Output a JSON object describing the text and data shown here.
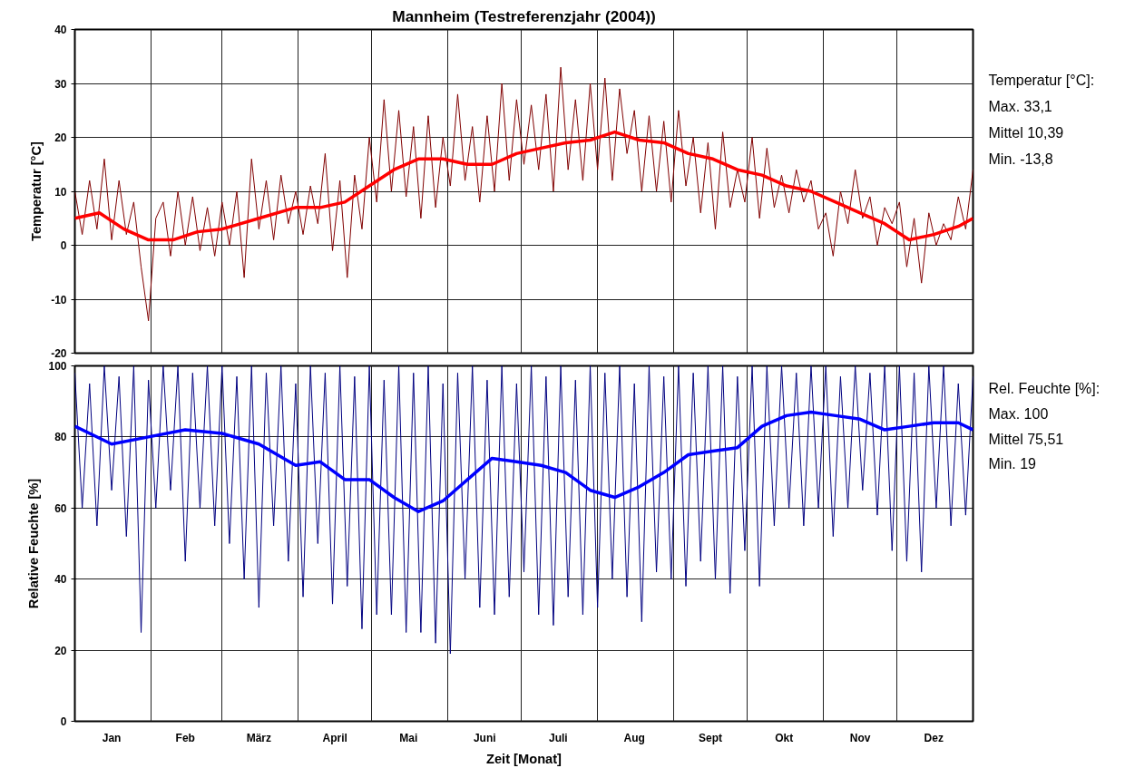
{
  "chart_data": [
    {
      "type": "line",
      "title": "Mannheim (Testreferenzjahr (2004))",
      "ylabel": "Temperatur [°C]",
      "xlim": [
        "2004-01-01",
        "2005-01-01"
      ],
      "ylim": [
        -20,
        40
      ],
      "yticks": [
        -20,
        -10,
        0,
        10,
        20,
        30,
        40
      ],
      "xticks": [
        {
          "value": "2004-01-01",
          "label": null
        },
        {
          "value": "2004-02-01",
          "label": null
        },
        {
          "value": "2004-03-01",
          "label": null
        },
        {
          "value": "2004-04-01",
          "label": null
        },
        {
          "value": "2004-05-01",
          "label": null
        },
        {
          "value": "2004-06-01",
          "label": null
        },
        {
          "value": "2004-07-01",
          "label": null
        },
        {
          "value": "2004-08-01",
          "label": null
        },
        {
          "value": "2004-09-01",
          "label": null
        },
        {
          "value": "2004-10-01",
          "label": null
        },
        {
          "value": "2004-11-01",
          "label": null
        },
        {
          "value": "2004-12-01",
          "label": null
        },
        {
          "value": "2005-01-01",
          "label": null
        }
      ],
      "tick_labels": "y",
      "grid": true,
      "annotations": [
        "Temperatur [°C]:",
        "Max.   33,1",
        "Mittel 10,39",
        "Min.   -13,8"
      ],
      "series": [
        {
          "color": "#800000",
          "x": [
            "2004-01-01",
            "2004-01-04",
            "2004-01-07",
            "2004-01-10",
            "2004-01-13",
            "2004-01-16",
            "2004-01-19",
            "2004-01-22",
            "2004-01-25",
            "2004-01-28",
            "2004-01-31",
            "2004-02-03",
            "2004-02-06",
            "2004-02-09",
            "2004-02-12",
            "2004-02-15",
            "2004-02-18",
            "2004-02-21",
            "2004-02-24",
            "2004-02-27",
            "2004-03-01",
            "2004-03-04",
            "2004-03-07",
            "2004-03-10",
            "2004-03-13",
            "2004-03-16",
            "2004-03-19",
            "2004-03-22",
            "2004-03-25",
            "2004-03-28",
            "2004-03-31",
            "2004-04-03",
            "2004-04-06",
            "2004-04-09",
            "2004-04-12",
            "2004-04-15",
            "2004-04-18",
            "2004-04-21",
            "2004-04-24",
            "2004-04-27",
            "2004-04-30",
            "2004-05-03",
            "2004-05-06",
            "2004-05-09",
            "2004-05-12",
            "2004-05-15",
            "2004-05-18",
            "2004-05-21",
            "2004-05-24",
            "2004-05-27",
            "2004-05-30",
            "2004-06-02",
            "2004-06-05",
            "2004-06-08",
            "2004-06-11",
            "2004-06-14",
            "2004-06-17",
            "2004-06-20",
            "2004-06-23",
            "2004-06-26",
            "2004-06-29",
            "2004-07-02",
            "2004-07-05",
            "2004-07-08",
            "2004-07-11",
            "2004-07-14",
            "2004-07-17",
            "2004-07-20",
            "2004-07-23",
            "2004-07-26",
            "2004-07-29",
            "2004-08-01",
            "2004-08-04",
            "2004-08-07",
            "2004-08-10",
            "2004-08-13",
            "2004-08-16",
            "2004-08-19",
            "2004-08-22",
            "2004-08-25",
            "2004-08-28",
            "2004-08-31",
            "2004-09-03",
            "2004-09-06",
            "2004-09-09",
            "2004-09-12",
            "2004-09-15",
            "2004-09-18",
            "2004-09-21",
            "2004-09-24",
            "2004-09-27",
            "2004-09-30",
            "2004-10-03",
            "2004-10-06",
            "2004-10-09",
            "2004-10-12",
            "2004-10-15",
            "2004-10-18",
            "2004-10-21",
            "2004-10-24",
            "2004-10-27",
            "2004-10-30",
            "2004-11-02",
            "2004-11-05",
            "2004-11-08",
            "2004-11-11",
            "2004-11-14",
            "2004-11-17",
            "2004-11-20",
            "2004-11-23",
            "2004-11-26",
            "2004-11-29",
            "2004-12-02",
            "2004-12-05",
            "2004-12-08",
            "2004-12-11",
            "2004-12-14",
            "2004-12-17",
            "2004-12-20",
            "2004-12-23",
            "2004-12-26",
            "2004-12-29",
            "2005-01-01"
          ],
          "values": [
            10,
            2,
            12,
            3,
            16,
            1,
            12,
            2,
            8,
            -4,
            -14,
            5,
            8,
            -2,
            10,
            0,
            9,
            -1,
            7,
            -2,
            8,
            0,
            10,
            -6,
            16,
            3,
            12,
            1,
            13,
            4,
            10,
            2,
            11,
            4,
            17,
            -1,
            12,
            -6,
            13,
            3,
            20,
            8,
            27,
            10,
            25,
            9,
            22,
            5,
            24,
            7,
            20,
            11,
            28,
            12,
            22,
            8,
            24,
            10,
            30,
            12,
            27,
            15,
            26,
            14,
            28,
            10,
            33,
            14,
            27,
            12,
            30,
            14,
            31,
            12,
            29,
            17,
            25,
            10,
            24,
            10,
            23,
            8,
            25,
            11,
            20,
            6,
            19,
            3,
            21,
            7,
            14,
            8,
            20,
            5,
            18,
            7,
            13,
            6,
            14,
            8,
            12,
            3,
            6,
            -2,
            10,
            4,
            14,
            5,
            9,
            0,
            7,
            4,
            8,
            -4,
            5,
            -7,
            6,
            0,
            4,
            1,
            9,
            3,
            14
          ]
        },
        {
          "color": "#ff0000",
          "x": [
            "2004-01-01",
            "2004-01-11",
            "2004-01-21",
            "2004-01-31",
            "2004-02-10",
            "2004-02-20",
            "2004-03-01",
            "2004-03-16",
            "2004-03-31",
            "2004-04-10",
            "2004-04-20",
            "2004-04-30",
            "2004-05-10",
            "2004-05-20",
            "2004-05-30",
            "2004-06-09",
            "2004-06-19",
            "2004-06-29",
            "2004-07-09",
            "2004-07-19",
            "2004-07-29",
            "2004-08-08",
            "2004-08-18",
            "2004-08-28",
            "2004-09-07",
            "2004-09-17",
            "2004-09-27",
            "2004-10-07",
            "2004-10-17",
            "2004-10-27",
            "2004-11-06",
            "2004-11-16",
            "2004-11-26",
            "2004-12-06",
            "2004-12-16",
            "2004-12-26",
            "2005-01-01"
          ],
          "values": [
            5,
            6,
            3,
            1,
            1,
            2.5,
            3,
            5,
            7,
            7,
            8,
            11,
            14,
            16,
            16,
            15,
            15,
            17,
            18,
            19,
            19.5,
            21,
            19.5,
            19,
            17,
            16,
            14,
            13,
            11,
            10,
            8,
            6,
            4,
            1,
            2,
            3.5,
            5
          ]
        }
      ]
    },
    {
      "type": "line",
      "ylabel": "Relative Feuchte [%]",
      "xlabel": "Zeit [Monat]",
      "xlim": [
        "2004-01-01",
        "2005-01-01"
      ],
      "ylim": [
        0,
        100
      ],
      "yticks": [
        0,
        20,
        40,
        60,
        80,
        100
      ],
      "xticks": [
        {
          "value": "2004-01-01",
          "label": null
        },
        {
          "value": "2004-01-16",
          "label": "Jan"
        },
        {
          "value": "2004-02-01",
          "label": null
        },
        {
          "value": "2004-02-15",
          "label": "Feb"
        },
        {
          "value": "2004-03-01",
          "label": null
        },
        {
          "value": "2004-03-16",
          "label": "März"
        },
        {
          "value": "2004-04-01",
          "label": null
        },
        {
          "value": "2004-04-16",
          "label": "April"
        },
        {
          "value": "2004-05-01",
          "label": null
        },
        {
          "value": "2004-05-16",
          "label": "Mai"
        },
        {
          "value": "2004-06-01",
          "label": null
        },
        {
          "value": "2004-06-16",
          "label": "Juni"
        },
        {
          "value": "2004-07-01",
          "label": null
        },
        {
          "value": "2004-07-16",
          "label": "Juli"
        },
        {
          "value": "2004-08-01",
          "label": null
        },
        {
          "value": "2004-08-16",
          "label": "Aug"
        },
        {
          "value": "2004-09-01",
          "label": null
        },
        {
          "value": "2004-09-16",
          "label": "Sept"
        },
        {
          "value": "2004-10-01",
          "label": null
        },
        {
          "value": "2004-10-16",
          "label": "Okt"
        },
        {
          "value": "2004-11-01",
          "label": null
        },
        {
          "value": "2004-11-16",
          "label": "Nov"
        },
        {
          "value": "2004-12-01",
          "label": null
        },
        {
          "value": "2004-12-16",
          "label": "Dez"
        },
        {
          "value": "2005-01-01",
          "label": null
        }
      ],
      "grid": true,
      "annotations": [
        "Rel. Feuchte [%]:",
        "Max.   100",
        "Mittel 75,51",
        "Min.   19"
      ],
      "series": [
        {
          "color": "#000080",
          "x": [
            "2004-01-01",
            "2004-01-04",
            "2004-01-07",
            "2004-01-10",
            "2004-01-13",
            "2004-01-16",
            "2004-01-19",
            "2004-01-22",
            "2004-01-25",
            "2004-01-28",
            "2004-01-31",
            "2004-02-03",
            "2004-02-06",
            "2004-02-09",
            "2004-02-12",
            "2004-02-15",
            "2004-02-18",
            "2004-02-21",
            "2004-02-24",
            "2004-02-27",
            "2004-03-01",
            "2004-03-04",
            "2004-03-07",
            "2004-03-10",
            "2004-03-13",
            "2004-03-16",
            "2004-03-19",
            "2004-03-22",
            "2004-03-25",
            "2004-03-28",
            "2004-03-31",
            "2004-04-03",
            "2004-04-06",
            "2004-04-09",
            "2004-04-12",
            "2004-04-15",
            "2004-04-18",
            "2004-04-21",
            "2004-04-24",
            "2004-04-27",
            "2004-04-30",
            "2004-05-03",
            "2004-05-06",
            "2004-05-09",
            "2004-05-12",
            "2004-05-15",
            "2004-05-18",
            "2004-05-21",
            "2004-05-24",
            "2004-05-27",
            "2004-05-30",
            "2004-06-02",
            "2004-06-05",
            "2004-06-08",
            "2004-06-11",
            "2004-06-14",
            "2004-06-17",
            "2004-06-20",
            "2004-06-23",
            "2004-06-26",
            "2004-06-29",
            "2004-07-02",
            "2004-07-05",
            "2004-07-08",
            "2004-07-11",
            "2004-07-14",
            "2004-07-17",
            "2004-07-20",
            "2004-07-23",
            "2004-07-26",
            "2004-07-29",
            "2004-08-01",
            "2004-08-04",
            "2004-08-07",
            "2004-08-10",
            "2004-08-13",
            "2004-08-16",
            "2004-08-19",
            "2004-08-22",
            "2004-08-25",
            "2004-08-28",
            "2004-08-31",
            "2004-09-03",
            "2004-09-06",
            "2004-09-09",
            "2004-09-12",
            "2004-09-15",
            "2004-09-18",
            "2004-09-21",
            "2004-09-24",
            "2004-09-27",
            "2004-09-30",
            "2004-10-03",
            "2004-10-06",
            "2004-10-09",
            "2004-10-12",
            "2004-10-15",
            "2004-10-18",
            "2004-10-21",
            "2004-10-24",
            "2004-10-27",
            "2004-10-30",
            "2004-11-02",
            "2004-11-05",
            "2004-11-08",
            "2004-11-11",
            "2004-11-14",
            "2004-11-17",
            "2004-11-20",
            "2004-11-23",
            "2004-11-26",
            "2004-11-29",
            "2004-12-02",
            "2004-12-05",
            "2004-12-08",
            "2004-12-11",
            "2004-12-14",
            "2004-12-17",
            "2004-12-20",
            "2004-12-23",
            "2004-12-26",
            "2004-12-29",
            "2005-01-01"
          ],
          "values": [
            98,
            60,
            95,
            55,
            100,
            65,
            97,
            52,
            100,
            25,
            96,
            60,
            100,
            65,
            100,
            45,
            98,
            60,
            100,
            55,
            100,
            50,
            97,
            40,
            100,
            32,
            98,
            55,
            100,
            45,
            95,
            35,
            100,
            50,
            98,
            33,
            100,
            38,
            97,
            26,
            100,
            30,
            96,
            30,
            100,
            25,
            98,
            25,
            100,
            22,
            95,
            19,
            98,
            40,
            100,
            32,
            96,
            30,
            100,
            35,
            95,
            42,
            100,
            30,
            97,
            27,
            100,
            35,
            96,
            30,
            100,
            32,
            98,
            40,
            100,
            35,
            95,
            28,
            100,
            42,
            97,
            40,
            100,
            38,
            98,
            45,
            100,
            40,
            100,
            36,
            97,
            48,
            100,
            38,
            100,
            55,
            100,
            60,
            98,
            55,
            100,
            60,
            100,
            52,
            97,
            60,
            100,
            65,
            98,
            58,
            100,
            48,
            100,
            45,
            98,
            42,
            100,
            60,
            100,
            55,
            95,
            58,
            97
          ]
        },
        {
          "color": "#0000ff",
          "x": [
            "2004-01-01",
            "2004-01-16",
            "2004-01-31",
            "2004-02-15",
            "2004-03-01",
            "2004-03-16",
            "2004-03-31",
            "2004-04-10",
            "2004-04-20",
            "2004-04-30",
            "2004-05-10",
            "2004-05-20",
            "2004-05-30",
            "2004-06-09",
            "2004-06-19",
            "2004-06-29",
            "2004-07-09",
            "2004-07-19",
            "2004-07-29",
            "2004-08-08",
            "2004-08-18",
            "2004-08-28",
            "2004-09-07",
            "2004-09-17",
            "2004-09-27",
            "2004-10-07",
            "2004-10-17",
            "2004-10-27",
            "2004-11-06",
            "2004-11-16",
            "2004-11-26",
            "2004-12-06",
            "2004-12-16",
            "2004-12-26",
            "2005-01-01"
          ],
          "values": [
            83,
            78,
            80,
            82,
            81,
            78,
            72,
            73,
            68,
            68,
            63,
            59,
            62,
            68,
            74,
            73,
            72,
            70,
            65,
            63,
            66,
            70,
            75,
            76,
            77,
            83,
            86,
            87,
            86,
            85,
            82,
            83,
            84,
            84,
            82
          ]
        }
      ]
    }
  ]
}
